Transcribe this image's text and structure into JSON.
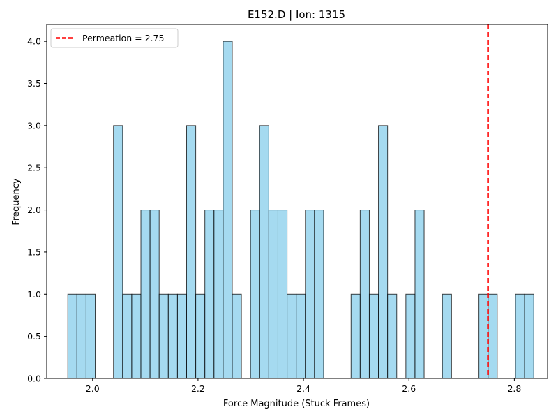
{
  "chart_data": {
    "type": "bar",
    "title": "E152.D | Ion: 1315",
    "xlabel": "Force Magnitude (Stuck Frames)",
    "ylabel": "Frequency",
    "xlim": [
      1.913,
      2.863
    ],
    "ylim": [
      0,
      4.2
    ],
    "bin_start": 1.953,
    "bin_width": 0.01733,
    "counts": [
      1,
      1,
      1,
      0,
      0,
      3,
      1,
      1,
      2,
      2,
      1,
      1,
      1,
      3,
      1,
      2,
      2,
      4,
      1,
      0,
      2,
      3,
      2,
      2,
      1,
      1,
      2,
      2,
      0,
      0,
      0,
      1,
      2,
      1,
      3,
      1,
      0,
      1,
      2,
      0,
      0,
      1,
      0,
      0,
      0,
      1,
      1,
      0,
      0,
      1,
      1
    ],
    "xticks": [
      2.0,
      2.2,
      2.4,
      2.6,
      2.8
    ],
    "xtick_labels": [
      "2.0",
      "2.2",
      "2.4",
      "2.6",
      "2.8"
    ],
    "yticks": [
      0,
      0.5,
      1,
      1.5,
      2,
      2.5,
      3,
      3.5,
      4
    ],
    "ytick_labels": [
      "0.0",
      "0.5",
      "1.0",
      "1.5",
      "2.0",
      "2.5",
      "3.0",
      "3.5",
      "4.0"
    ],
    "bar_color": "#87ceeb",
    "bar_edge_color": "#000000",
    "permeation": {
      "value": 2.75,
      "label": "Permeation = 2.75",
      "color": "#ff0000"
    },
    "legend_position": "top-left",
    "grid": false
  }
}
